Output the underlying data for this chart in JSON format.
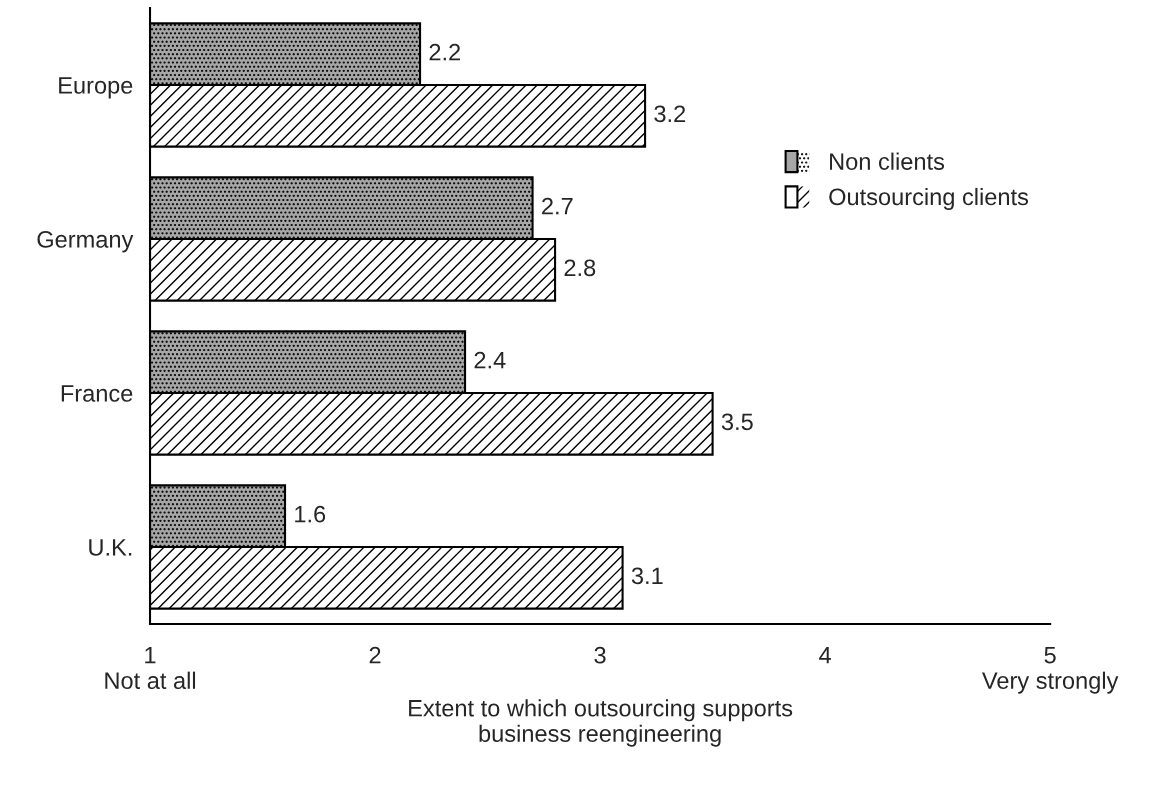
{
  "chart_data": {
    "type": "bar",
    "orientation": "horizontal",
    "categories": [
      "Europe",
      "Germany",
      "France",
      "U.K."
    ],
    "series": [
      {
        "name": "Non clients",
        "color": "#a6a6a6",
        "values": [
          2.2,
          2.7,
          2.4,
          1.6
        ]
      },
      {
        "name": "Outsourcing clients",
        "color": "#ffffff",
        "values": [
          3.2,
          2.8,
          3.5,
          3.1
        ]
      }
    ],
    "xlim": [
      1,
      5
    ],
    "xticks": [
      {
        "value": 1,
        "label": "1\nNot at all"
      },
      2,
      3,
      4,
      {
        "value": 5,
        "label": "5\nVery strongly"
      }
    ],
    "xlabel": "Extent to which outsourcing supports\nbusiness reengineering",
    "data_labels": true,
    "legend": "center right",
    "grid": false
  }
}
